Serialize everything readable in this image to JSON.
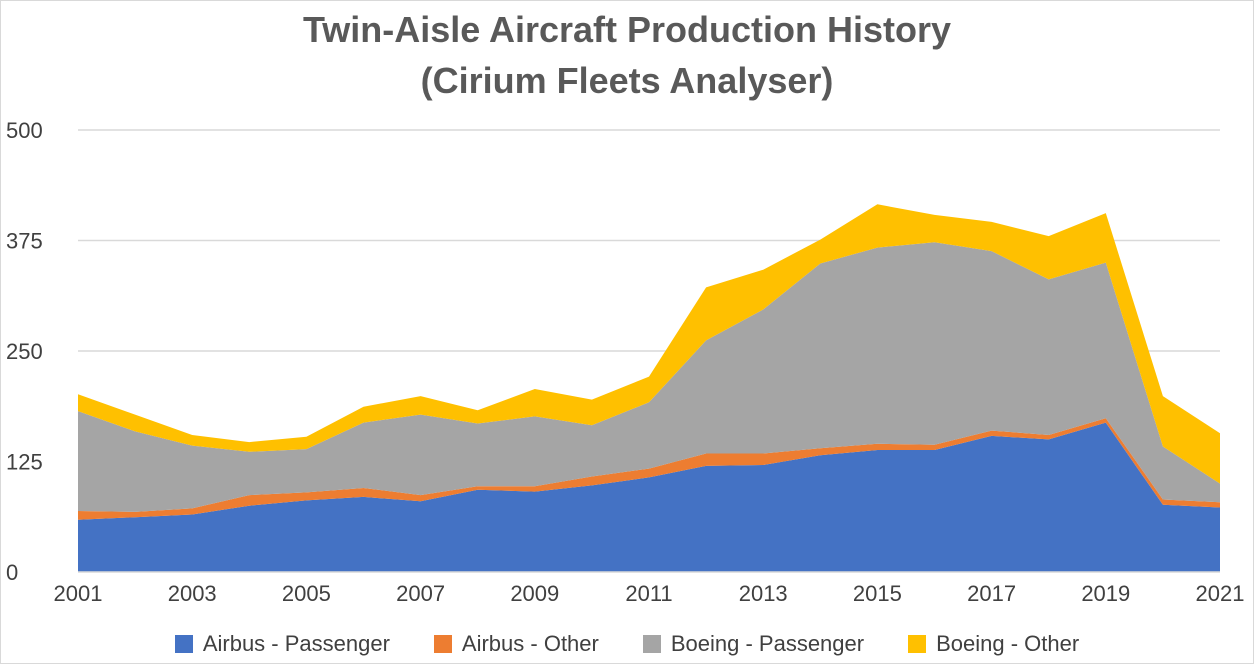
{
  "chart_data": {
    "type": "area",
    "stacked": true,
    "title": "Twin-Aisle Aircraft Production History",
    "subtitle": "(Cirium Fleets Analyser)",
    "x": [
      2001,
      2002,
      2003,
      2004,
      2005,
      2006,
      2007,
      2008,
      2009,
      2010,
      2011,
      2012,
      2013,
      2014,
      2015,
      2016,
      2017,
      2018,
      2019,
      2020,
      2021
    ],
    "x_tick_labels": [
      "2001",
      "2003",
      "2005",
      "2007",
      "2009",
      "2011",
      "2013",
      "2015",
      "2017",
      "2019",
      "2021"
    ],
    "y_tick_labels": [
      "0",
      "125",
      "250",
      "375",
      "500"
    ],
    "ylim": [
      0,
      500
    ],
    "xlim": [
      2001,
      2021
    ],
    "grid": true,
    "legend_position": "bottom",
    "series": [
      {
        "name": "Airbus - Passenger",
        "color": "#4472c4",
        "values": [
          59,
          62,
          65,
          75,
          81,
          85,
          80,
          93,
          91,
          98,
          107,
          120,
          121,
          132,
          138,
          138,
          154,
          150,
          169,
          76,
          73
        ]
      },
      {
        "name": "Airbus - Other",
        "color": "#ed7d31",
        "values": [
          10,
          6,
          7,
          12,
          9,
          10,
          7,
          4,
          6,
          10,
          10,
          14,
          13,
          8,
          7,
          6,
          6,
          5,
          5,
          6,
          6
        ]
      },
      {
        "name": "Boeing - Passenger",
        "color": "#a5a5a5",
        "values": [
          113,
          91,
          71,
          49,
          49,
          74,
          91,
          71,
          79,
          58,
          75,
          128,
          163,
          209,
          222,
          229,
          203,
          176,
          176,
          60,
          21
        ]
      },
      {
        "name": "Boeing - Other",
        "color": "#ffc000",
        "values": [
          19,
          19,
          12,
          11,
          14,
          18,
          21,
          15,
          31,
          29,
          29,
          60,
          45,
          27,
          49,
          31,
          33,
          49,
          56,
          57,
          57
        ]
      }
    ]
  }
}
